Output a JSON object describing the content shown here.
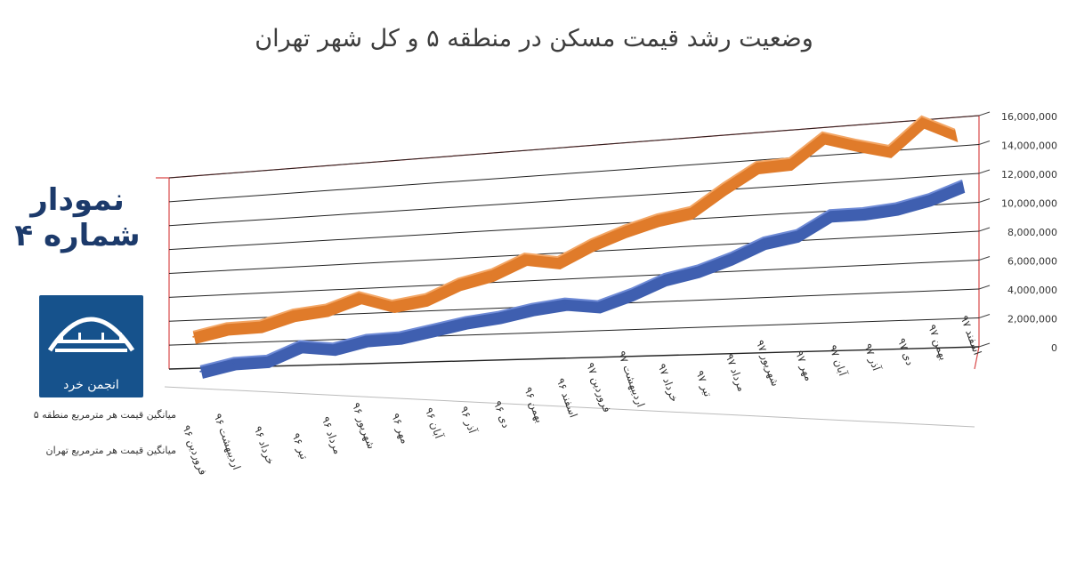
{
  "chart_data": {
    "type": "line",
    "title": "وضعیت رشد قیمت مسکن در منطقه ۵ و کل شهر تهران",
    "categories": [
      "فروردین ۹۶",
      "اردیبهشت ۹۶",
      "خرداد ۹۶",
      "تیر ۹۶",
      "مرداد ۹۶",
      "شهریور ۹۶",
      "مهر ۹۶",
      "آبان ۹۶",
      "آذر ۹۶",
      "دی ۹۶",
      "بهمن ۹۶",
      "اسفند ۹۶",
      "فروردین ۹۷",
      "اردیبهشت ۹۷",
      "خرداد ۹۷",
      "تیر ۹۷",
      "مرداد ۹۷",
      "شهریور ۹۷",
      "مهر ۹۷",
      "آبان ۹۷",
      "آذر ۹۷",
      "دی ۹۷",
      "بهمن ۹۷",
      "اسفند ۹۷"
    ],
    "series": [
      {
        "name": "میانگین قیمت هر مترمربع منطقه ۵",
        "color": "#e07b2a",
        "values": [
          2400000,
          3000000,
          3100000,
          3900000,
          4200000,
          5100000,
          4300000,
          4700000,
          5800000,
          6400000,
          7500000,
          7100000,
          8300000,
          9200000,
          9900000,
          10300000,
          11900000,
          13300000,
          13400000,
          15100000,
          14400000,
          13800000,
          15700000,
          14600000
        ]
      },
      {
        "name": "میانگین قیمت هر مترمربع تهران",
        "color": "#3f5fb0",
        "values": [
          1000000,
          1600000,
          1700000,
          2800000,
          2500000,
          3100000,
          3200000,
          3700000,
          4200000,
          4500000,
          5000000,
          5300000,
          5000000,
          5800000,
          6800000,
          7300000,
          8100000,
          9100000,
          9500000,
          10800000,
          10800000,
          11000000,
          11500000,
          12300000
        ]
      }
    ],
    "yticks": [
      "0",
      "2,000,000",
      "4,000,000",
      "6,000,000",
      "8,000,000",
      "10,000,000",
      "12,000,000",
      "14,000,000",
      "16,000,000"
    ],
    "ylim": [
      0,
      16000000
    ],
    "grid": true,
    "legend_position": "left"
  },
  "side_label": {
    "line1": "نمودار",
    "line2": "شماره ۴"
  },
  "logo": {
    "text": "انجمن خرد",
    "color": "#16528c"
  }
}
